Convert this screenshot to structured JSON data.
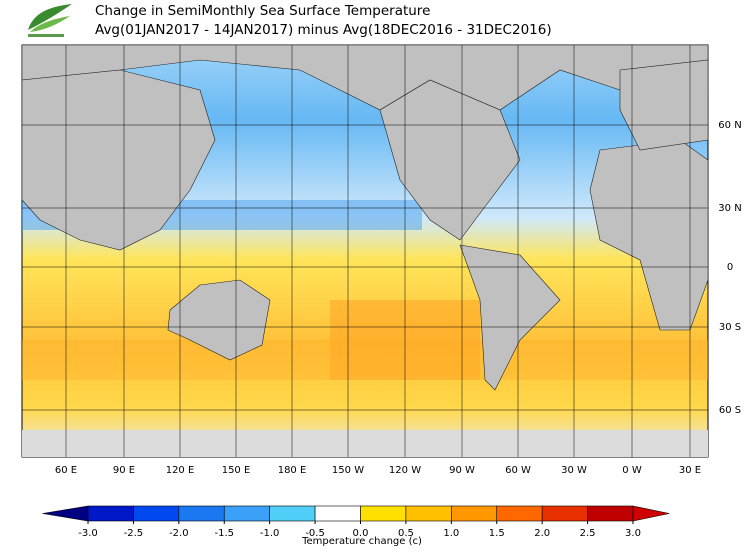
{
  "header": {
    "title": "Change in SemiMonthly Sea Surface Temperature",
    "subtitle": "Avg(01JAN2017 - 14JAN2017) minus Avg(18DEC2016 - 31DEC2016)"
  },
  "map": {
    "lon_labels": [
      "60 E",
      "90 E",
      "120 E",
      "150 E",
      "180 E",
      "150 W",
      "120 W",
      "90 W",
      "60 W",
      "30 W",
      "0 W",
      "30 E"
    ],
    "lat_labels": [
      "60 N",
      "30 N",
      "0",
      "30 S",
      "60 S"
    ]
  },
  "colorbar": {
    "label": "Temperature change  (c)",
    "ticks": [
      {
        "value": -3,
        "label": "-3.0"
      },
      {
        "value": -2.5,
        "label": "-2.5"
      },
      {
        "value": -2,
        "label": "-2.0"
      },
      {
        "value": -1.5,
        "label": "-1.5"
      },
      {
        "value": -1,
        "label": "-1.0"
      },
      {
        "value": -0.5,
        "label": "-0.5"
      },
      {
        "value": 0,
        "label": "0.0"
      },
      {
        "value": 0.5,
        "label": "0.5"
      },
      {
        "value": 1,
        "label": "1.0"
      },
      {
        "value": 1.5,
        "label": "1.5"
      },
      {
        "value": 2,
        "label": "2.0"
      },
      {
        "value": 2.5,
        "label": "2.5"
      },
      {
        "value": 3,
        "label": "3.0"
      }
    ],
    "colors": [
      "#000080",
      "#0018c8",
      "#0048f0",
      "#1a78f0",
      "#3aa0f8",
      "#50d0f8",
      "#ffffff",
      "#ffe000",
      "#ffc000",
      "#ff9800",
      "#ff6800",
      "#e83000",
      "#c00000",
      "#d00000"
    ]
  }
}
